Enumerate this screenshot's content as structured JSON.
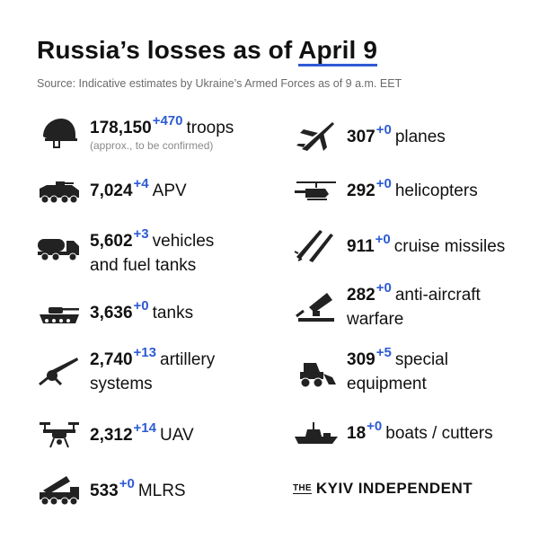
{
  "title": {
    "prefix": "Russia’s losses  as of ",
    "date": "April 9"
  },
  "source": "Source: Indicative estimates by Ukraine’s Armed Forces as of 9 a.m. EET",
  "accent_color": "#2d5bd3",
  "left": [
    {
      "icon": "helmet-icon",
      "number": "178,150",
      "increase": "+470",
      "label": "troops",
      "note": "(approx., to be confirmed)"
    },
    {
      "icon": "apv-icon",
      "number": "7,024",
      "increase": "+4",
      "label": "APV"
    },
    {
      "icon": "fuel-truck-icon",
      "number": "5,602",
      "increase": "+3",
      "label": "vehicles",
      "label2": "and fuel tanks"
    },
    {
      "icon": "tank-icon",
      "number": "3,636",
      "increase": "+0",
      "label": "tanks"
    },
    {
      "icon": "artillery-icon",
      "number": "2,740",
      "increase": "+13",
      "label": "artillery",
      "label2": "systems"
    },
    {
      "icon": "drone-icon",
      "number": "2,312",
      "increase": "+14",
      "label": "UAV"
    },
    {
      "icon": "mlrs-icon",
      "number": "533",
      "increase": "+0",
      "label": "MLRS"
    }
  ],
  "right": [
    {
      "icon": "plane-icon",
      "number": "307",
      "increase": "+0",
      "label": "planes"
    },
    {
      "icon": "helicopter-icon",
      "number": "292",
      "increase": "+0",
      "label": "helicopters"
    },
    {
      "icon": "missile-icon",
      "number": "911",
      "increase": "+0",
      "label": "cruise missiles"
    },
    {
      "icon": "anti-aircraft-icon",
      "number": "282",
      "increase": "+0",
      "label": "anti-aircraft",
      "label2": "warfare"
    },
    {
      "icon": "special-equipment-icon",
      "number": "309",
      "increase": "+5",
      "label": "special",
      "label2": "equipment"
    },
    {
      "icon": "boat-icon",
      "number": "18",
      "increase": "+0",
      "label": "boats / cutters"
    }
  ],
  "logo": {
    "the": "THE",
    "name": "KYIV INDEPENDENT"
  }
}
